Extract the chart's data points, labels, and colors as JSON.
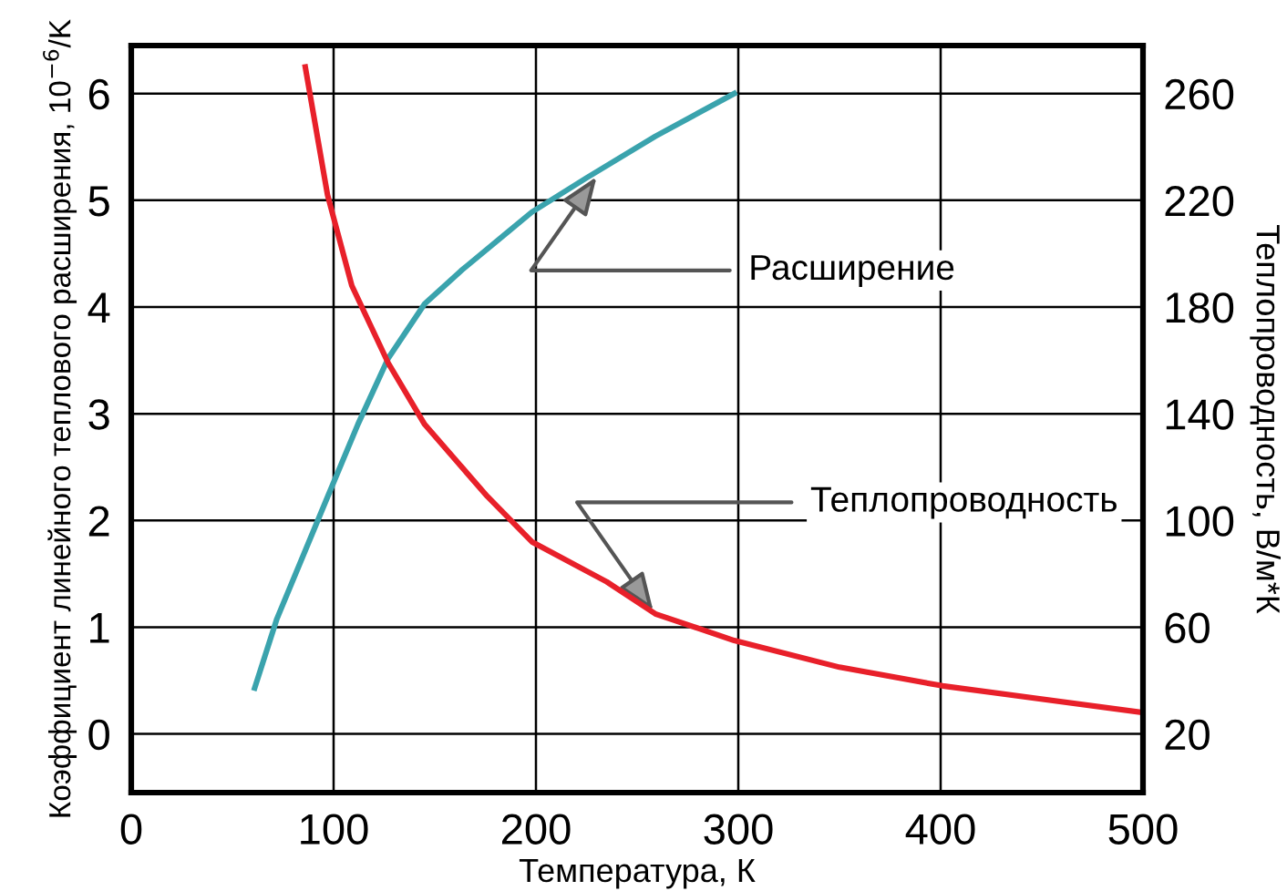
{
  "chart_data": {
    "type": "line",
    "xlabel": "Температура, К",
    "ylabel": "Коэффициент линейного теплового расширения, 10$^{−6}$/K",
    "y2label": "Теплопроводность, В/м*К",
    "series": [
      {
        "color": "#3aa3ad",
        "x": [
          61,
          72,
          97,
          112,
          127,
          145,
          163,
          198,
          225,
          259,
          298
        ],
        "values": [
          0.43,
          1.08,
          2.22,
          2.9,
          3.52,
          4.03,
          4.34,
          4.89,
          5.21,
          5.6,
          6.0
        ]
      },
      {
        "color": "#e8202a",
        "axis": "y2",
        "x": [
          86,
          97,
          109,
          127,
          145,
          176,
          198,
          235,
          259,
          298,
          350,
          401,
          500
        ],
        "values": [
          270,
          222,
          188,
          159,
          136,
          109,
          92,
          77,
          65,
          55,
          45,
          38,
          28
        ]
      }
    ],
    "annotations": [
      {
        "text": "Расширение",
        "x": 230,
        "y": 5.22
      },
      {
        "text": "Теплопроводность",
        "x": 258,
        "y": 1.15
      }
    ],
    "xlim": [
      0,
      500
    ],
    "xticks": [
      0,
      100,
      200,
      300,
      400,
      500
    ],
    "ylim": [
      -0.55,
      6.45
    ],
    "yticks": [
      0,
      1,
      2,
      3,
      4,
      5,
      6
    ],
    "y2lim": [
      -2,
      278
    ],
    "y2ticks": [
      20,
      60,
      100,
      140,
      180,
      220,
      260
    ],
    "grid": true,
    "legend": false,
    "marker": "none",
    "line_style": "solid"
  }
}
